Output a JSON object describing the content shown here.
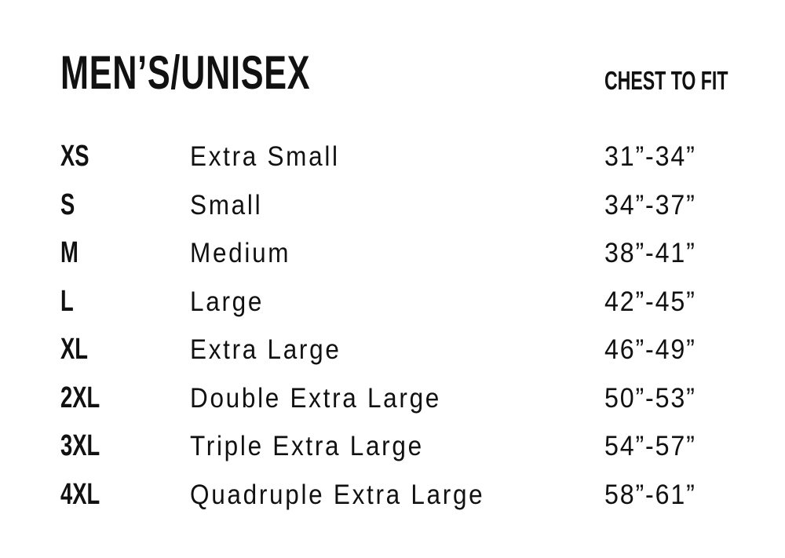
{
  "title": "MEN’S/UNISEX",
  "column_header": "CHEST TO FIT",
  "rows": [
    {
      "code": "XS",
      "name": "Extra Small",
      "chest": "31”-34”"
    },
    {
      "code": "S",
      "name": "Small",
      "chest": "34”-37”"
    },
    {
      "code": "M",
      "name": "Medium",
      "chest": "38”-41”"
    },
    {
      "code": "L",
      "name": "Large",
      "chest": "42”-45”"
    },
    {
      "code": "XL",
      "name": "Extra Large",
      "chest": "46”-49”"
    },
    {
      "code": "2XL",
      "name": "Double Extra Large",
      "chest": "50”-53”"
    },
    {
      "code": "3XL",
      "name": "Triple Extra Large",
      "chest": "54”-57”"
    },
    {
      "code": "4XL",
      "name": "Quadruple Extra Large",
      "chest": "58”-61”"
    }
  ]
}
